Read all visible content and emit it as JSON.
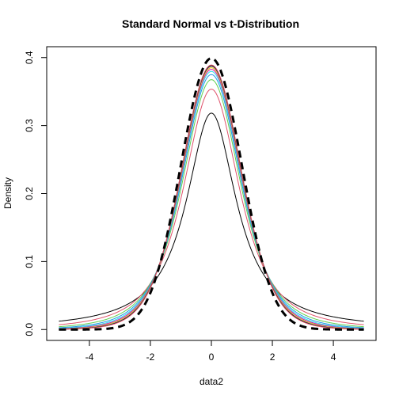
{
  "chart_data": {
    "type": "line",
    "title": "Standard Normal vs t-Distribution",
    "xlabel": "data2",
    "ylabel": "Density",
    "xlim": [
      -5.4,
      5.4
    ],
    "ylim": [
      -0.016,
      0.416
    ],
    "x_ticks": [
      -4,
      -2,
      0,
      2,
      4
    ],
    "y_ticks": [
      0.0,
      0.1,
      0.2,
      0.3,
      0.4
    ],
    "x_tick_labels": [
      "-4",
      "-2",
      "0",
      "2",
      "4"
    ],
    "y_tick_labels": [
      "0.0",
      "0.1",
      "0.2",
      "0.3",
      "0.4"
    ],
    "x_range": [
      -5,
      5
    ],
    "grid": false,
    "series": [
      {
        "kind": "t",
        "df": 1,
        "color": "#000000",
        "width": 1,
        "dash": ""
      },
      {
        "kind": "t",
        "df": 2,
        "color": "#DF536B",
        "width": 1,
        "dash": ""
      },
      {
        "kind": "t",
        "df": 3,
        "color": "#61D04F",
        "width": 1,
        "dash": ""
      },
      {
        "kind": "t",
        "df": 4,
        "color": "#2297E6",
        "width": 1,
        "dash": ""
      },
      {
        "kind": "t",
        "df": 5,
        "color": "#28E2E5",
        "width": 1,
        "dash": ""
      },
      {
        "kind": "t",
        "df": 6,
        "color": "#CD0BBC",
        "width": 1,
        "dash": ""
      },
      {
        "kind": "t",
        "df": 7,
        "color": "#F5C710",
        "width": 1,
        "dash": ""
      },
      {
        "kind": "t",
        "df": 8,
        "color": "#9E9E9E",
        "width": 1,
        "dash": ""
      },
      {
        "kind": "t",
        "df": 9,
        "color": "#000000",
        "width": 1,
        "dash": ""
      },
      {
        "kind": "t",
        "df": 10,
        "color": "#DF536B",
        "width": 1,
        "dash": ""
      },
      {
        "kind": "normal",
        "color": "#000000",
        "width": 3,
        "dash": "9,6"
      }
    ]
  }
}
